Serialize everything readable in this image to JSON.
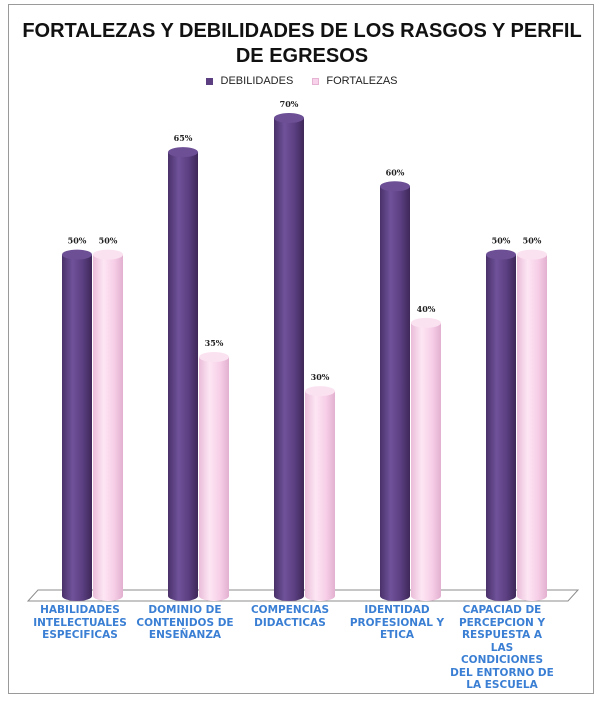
{
  "chart_data": {
    "type": "bar",
    "title": "FORTALEZAS Y DEBILIDADES DE LOS RASGOS Y PERFIL DE EGRESOS",
    "categories": [
      "HABILIDADES INTELECTUALES ESPECIFICAS",
      "DOMINIO DE CONTENIDOS DE ENSEÑANZA",
      "COMPENCIAS DIDACTICAS",
      "IDENTIDAD PROFESIONAL Y ETICA",
      "CAPACIAD DE PERCEPCION Y RESPUESTA A LAS CONDICIONES DEL ENTORNO DE LA ESCUELA"
    ],
    "series": [
      {
        "name": "DEBILIDADES",
        "values": [
          50,
          65,
          70,
          60,
          50
        ],
        "labels": [
          "50%",
          "65%",
          "70%",
          "60%",
          "50%"
        ],
        "color": "#5b3f80"
      },
      {
        "name": "FORTALEZAS",
        "values": [
          50,
          35,
          30,
          40,
          50
        ],
        "labels": [
          "50%",
          "35%",
          "30%",
          "40%",
          "50%"
        ],
        "color": "#f8d2ea"
      }
    ],
    "ylim": [
      0,
      100
    ],
    "legend_position": "top-center",
    "grid": false,
    "style": "3d-cylinder"
  }
}
